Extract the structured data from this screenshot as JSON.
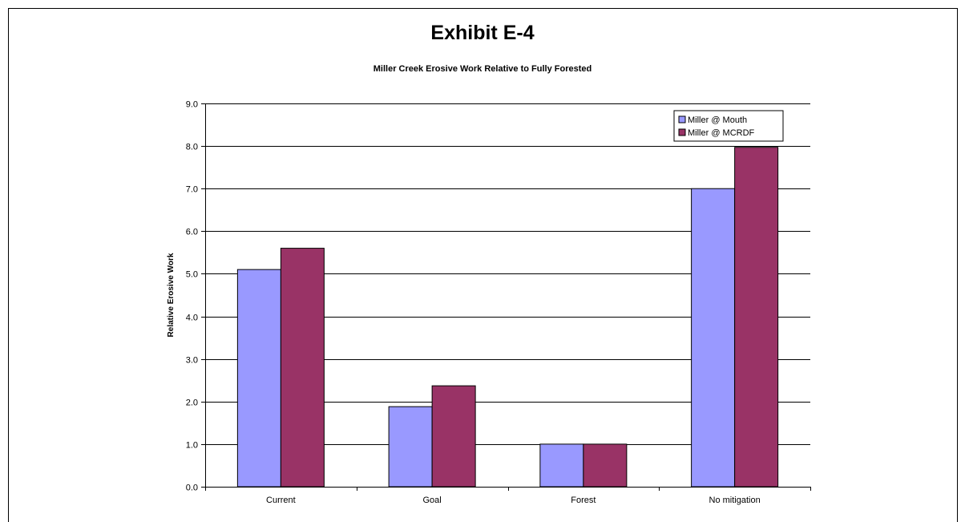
{
  "exhibit_title": "Exhibit E-4",
  "chart_data": {
    "type": "bar",
    "title": "Miller Creek Erosive Work Relative to Fully Forested",
    "xlabel": "",
    "ylabel": "Relative Erosive Work",
    "ylim": [
      0,
      9
    ],
    "ytick_step": 1,
    "ytick_format": "0.0",
    "grid": true,
    "legend_position": "top-right",
    "categories": [
      "Current",
      "Goal",
      "Forest",
      "No mitigation"
    ],
    "series": [
      {
        "name": "Miller @ Mouth",
        "color": "#9999ff",
        "values": [
          5.1,
          1.88,
          1.0,
          7.0
        ]
      },
      {
        "name": "Miller @ MCRDF",
        "color": "#993366",
        "values": [
          5.6,
          2.37,
          1.0,
          7.97
        ]
      }
    ]
  }
}
